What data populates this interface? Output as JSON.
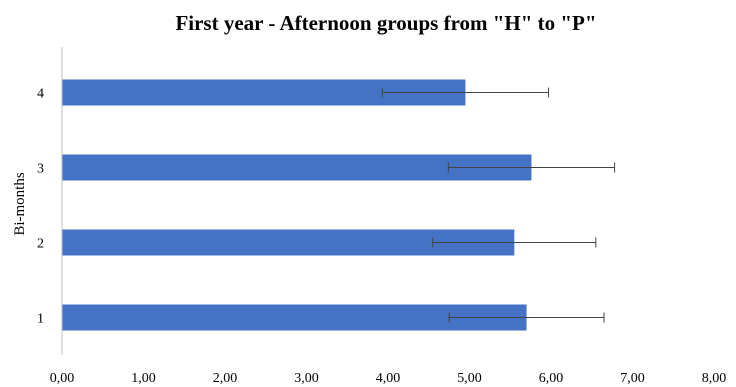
{
  "chart_data": {
    "type": "bar",
    "orientation": "horizontal",
    "title": "First year  - Afternoon groups from \"H\"  to \"P\"",
    "ylabel": "Bi-months",
    "xlabel": "",
    "categories": [
      "4",
      "3",
      "2",
      "1"
    ],
    "values": [
      4.95,
      5.76,
      5.55,
      5.7
    ],
    "errors": [
      1.02,
      1.02,
      1.0,
      0.95
    ],
    "xlim": [
      0,
      8
    ],
    "x_ticks": [
      "0,00",
      "1,00",
      "2,00",
      "3,00",
      "4,00",
      "5,00",
      "6,00",
      "7,00",
      "8,00"
    ],
    "bar_color": "#4472c4",
    "grid": false,
    "legend": "none"
  }
}
